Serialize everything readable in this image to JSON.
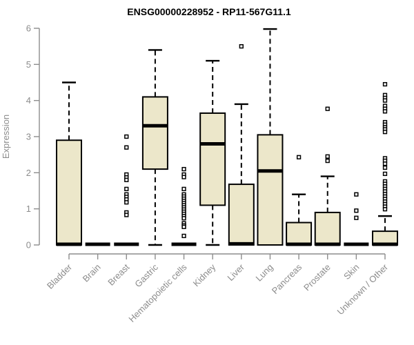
{
  "chart_data": {
    "type": "boxplot",
    "title": "ENSG00000228952 - RP11-567G11.1",
    "ylabel": "Expression",
    "xlabel": "",
    "ylim": [
      0,
      6
    ],
    "yticks": [
      0,
      1,
      2,
      3,
      4,
      5,
      6
    ],
    "grid": false,
    "legend": "none",
    "colors": {
      "box_fill": "#ECE7CA",
      "box_stroke": "#000000",
      "median": "#000000",
      "whisker": "#000000",
      "outlier_stroke": "#000000",
      "outlier_fill": "#ffffff",
      "axis": "#8C8C8C",
      "title": "#000000",
      "background": "#ffffff"
    },
    "categories": [
      "Bladder",
      "Brain",
      "Breast",
      "Gastric",
      "Hematopoietic cells",
      "Kidney",
      "Liver",
      "Lung",
      "Pancreas",
      "Prostate",
      "Skin",
      "Unknown / Other"
    ],
    "boxes": [
      {
        "label": "Bladder",
        "q1": 0,
        "median": 0.02,
        "q3": 2.9,
        "whisker_low": 0,
        "whisker_high": 4.5,
        "outliers": []
      },
      {
        "label": "Brain",
        "q1": 0,
        "median": 0.02,
        "q3": 0,
        "whisker_low": 0,
        "whisker_high": 0,
        "outliers": []
      },
      {
        "label": "Breast",
        "q1": 0,
        "median": 0.02,
        "q3": 0,
        "whisker_low": 0,
        "whisker_high": 0,
        "outliers": [
          3.0,
          2.7,
          1.95,
          1.87,
          1.8,
          1.55,
          1.4,
          1.33,
          1.26,
          1.18,
          0.9,
          0.83
        ]
      },
      {
        "label": "Gastric",
        "q1": 2.1,
        "median": 3.3,
        "q3": 4.1,
        "whisker_low": 0,
        "whisker_high": 5.4,
        "outliers": []
      },
      {
        "label": "Hematopoietic cells",
        "q1": 0,
        "median": 0.02,
        "q3": 0,
        "whisker_low": 0,
        "whisker_high": 0,
        "outliers": [
          2.1,
          1.95,
          1.88,
          1.55,
          1.4,
          1.34,
          1.28,
          1.22,
          1.16,
          1.1,
          1.04,
          0.98,
          0.92,
          0.86,
          0.8,
          0.74,
          0.6,
          0.54,
          0.5,
          0.25
        ]
      },
      {
        "label": "Kidney",
        "q1": 1.1,
        "median": 2.8,
        "q3": 3.65,
        "whisker_low": 0,
        "whisker_high": 5.1,
        "outliers": []
      },
      {
        "label": "Liver",
        "q1": 0,
        "median": 0.03,
        "q3": 1.68,
        "whisker_low": 0,
        "whisker_high": 3.9,
        "outliers": [
          5.5
        ]
      },
      {
        "label": "Lung",
        "q1": 0,
        "median": 2.05,
        "q3": 3.05,
        "whisker_low": 0,
        "whisker_high": 5.98,
        "outliers": []
      },
      {
        "label": "Pancreas",
        "q1": 0,
        "median": 0.02,
        "q3": 0.62,
        "whisker_low": 0,
        "whisker_high": 1.4,
        "outliers": [
          2.43
        ]
      },
      {
        "label": "Prostate",
        "q1": 0,
        "median": 0.02,
        "q3": 0.9,
        "whisker_low": 0,
        "whisker_high": 1.9,
        "outliers": [
          3.77,
          2.45,
          2.33
        ]
      },
      {
        "label": "Skin",
        "q1": 0,
        "median": 0.02,
        "q3": 0,
        "whisker_low": 0,
        "whisker_high": 0,
        "outliers": [
          1.4,
          0.95,
          0.75
        ]
      },
      {
        "label": "Unknown / Other",
        "q1": 0,
        "median": 0.02,
        "q3": 0.38,
        "whisker_low": 0,
        "whisker_high": 0.8,
        "outliers": [
          4.45,
          4.15,
          4.07,
          4.0,
          3.85,
          3.77,
          3.7,
          3.4,
          3.33,
          3.26,
          3.2,
          3.13,
          2.4,
          2.33,
          2.25,
          2.14,
          1.97,
          1.76,
          1.69,
          1.62,
          1.55,
          1.48,
          1.41,
          1.34,
          1.27,
          1.2,
          1.13,
          1.06,
          0.99
        ]
      }
    ]
  }
}
